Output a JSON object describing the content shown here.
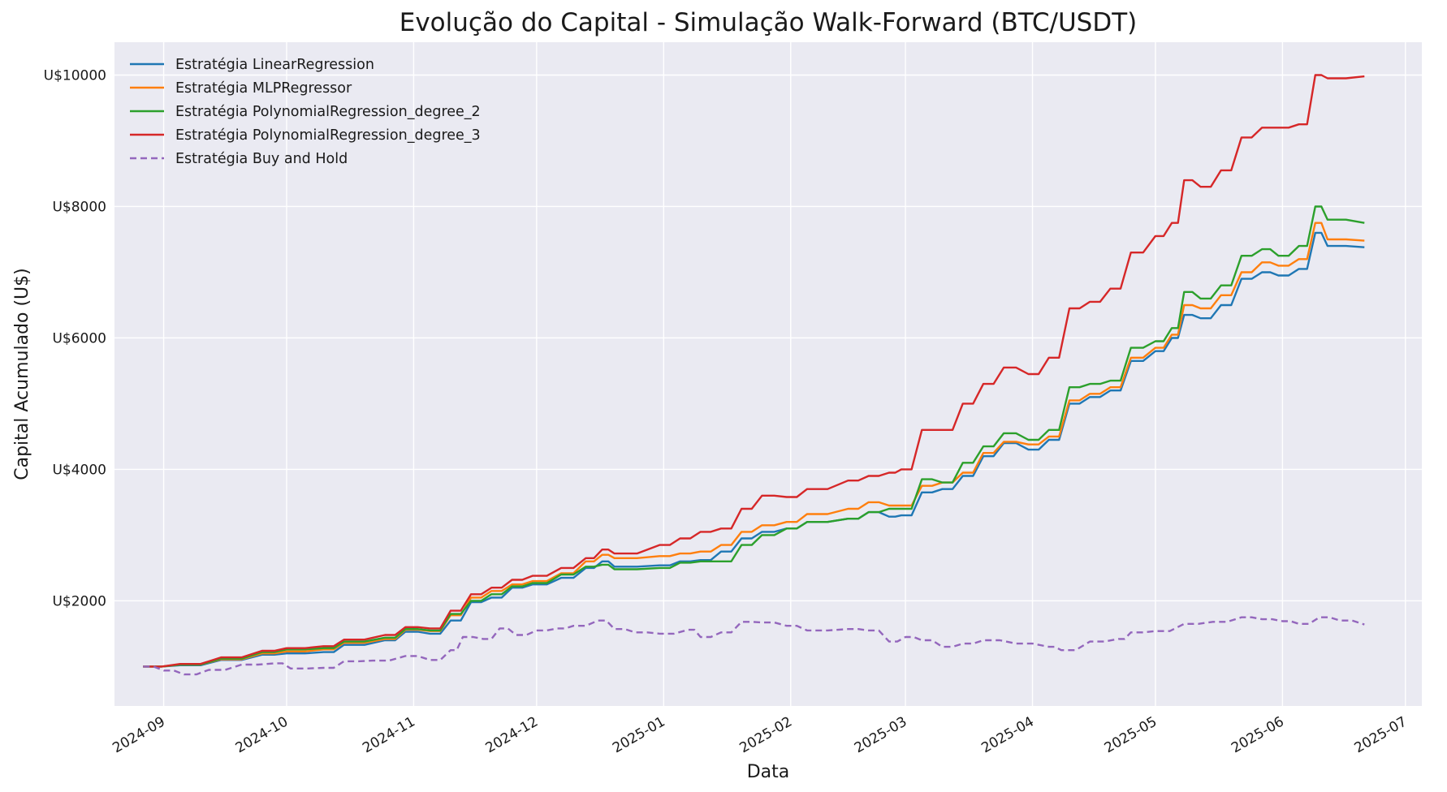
{
  "chart_data": {
    "type": "line",
    "title": "Evolução do Capital - Simulação Walk-Forward (BTC/USDT)",
    "xlabel": "Data",
    "ylabel": "Capital Acumulado (U$)",
    "x_range": [
      "2024-08-20",
      "2025-07-05"
    ],
    "ylim": [
      400,
      10500
    ],
    "yticks": [
      2000,
      4000,
      6000,
      8000,
      10000
    ],
    "ytick_prefix": "U$",
    "xticks": [
      "2024-09",
      "2024-10",
      "2024-11",
      "2024-12",
      "2025-01",
      "2025-02",
      "2025-03",
      "2025-04",
      "2025-05",
      "2025-06",
      "2025-07"
    ],
    "grid": true,
    "legend_position": "top-left",
    "series": [
      {
        "name": "Estratégia LinearRegression",
        "color": "#1f77b4",
        "style": "solid",
        "points": [
          [
            "2024-08-27",
            1000
          ],
          [
            "2024-09-05",
            1020
          ],
          [
            "2024-09-15",
            1100
          ],
          [
            "2024-09-25",
            1180
          ],
          [
            "2024-10-01",
            1200
          ],
          [
            "2024-10-10",
            1220
          ],
          [
            "2024-10-15",
            1330
          ],
          [
            "2024-10-25",
            1400
          ],
          [
            "2024-10-30",
            1530
          ],
          [
            "2024-11-05",
            1500
          ],
          [
            "2024-11-10",
            1700
          ],
          [
            "2024-11-15",
            1980
          ],
          [
            "2024-11-20",
            2050
          ],
          [
            "2024-11-25",
            2200
          ],
          [
            "2024-11-30",
            2250
          ],
          [
            "2024-12-07",
            2350
          ],
          [
            "2024-12-13",
            2500
          ],
          [
            "2024-12-17",
            2600
          ],
          [
            "2024-12-20",
            2520
          ],
          [
            "2024-12-31",
            2540
          ],
          [
            "2025-01-05",
            2600
          ],
          [
            "2025-01-10",
            2620
          ],
          [
            "2025-01-15",
            2750
          ],
          [
            "2025-01-20",
            2950
          ],
          [
            "2025-01-25",
            3050
          ],
          [
            "2025-01-31",
            3100
          ],
          [
            "2025-02-05",
            3200
          ],
          [
            "2025-02-15",
            3250
          ],
          [
            "2025-02-20",
            3350
          ],
          [
            "2025-02-25",
            3280
          ],
          [
            "2025-02-28",
            3300
          ],
          [
            "2025-03-05",
            3650
          ],
          [
            "2025-03-10",
            3700
          ],
          [
            "2025-03-15",
            3900
          ],
          [
            "2025-03-20",
            4200
          ],
          [
            "2025-03-25",
            4400
          ],
          [
            "2025-03-31",
            4300
          ],
          [
            "2025-04-05",
            4450
          ],
          [
            "2025-04-10",
            5000
          ],
          [
            "2025-04-15",
            5100
          ],
          [
            "2025-04-20",
            5200
          ],
          [
            "2025-04-25",
            5650
          ],
          [
            "2025-05-01",
            5800
          ],
          [
            "2025-05-05",
            6000
          ],
          [
            "2025-05-08",
            6350
          ],
          [
            "2025-05-12",
            6300
          ],
          [
            "2025-05-17",
            6500
          ],
          [
            "2025-05-22",
            6900
          ],
          [
            "2025-05-27",
            7000
          ],
          [
            "2025-05-31",
            6950
          ],
          [
            "2025-06-05",
            7050
          ],
          [
            "2025-06-09",
            7600
          ],
          [
            "2025-06-12",
            7400
          ],
          [
            "2025-06-21",
            7380
          ]
        ]
      },
      {
        "name": "Estratégia MLPRegressor",
        "color": "#ff7f0e",
        "style": "solid",
        "points": [
          [
            "2024-08-27",
            1000
          ],
          [
            "2024-09-05",
            1030
          ],
          [
            "2024-09-15",
            1110
          ],
          [
            "2024-09-25",
            1200
          ],
          [
            "2024-10-01",
            1230
          ],
          [
            "2024-10-10",
            1260
          ],
          [
            "2024-10-15",
            1360
          ],
          [
            "2024-10-25",
            1420
          ],
          [
            "2024-10-30",
            1560
          ],
          [
            "2024-11-05",
            1540
          ],
          [
            "2024-11-10",
            1780
          ],
          [
            "2024-11-15",
            2050
          ],
          [
            "2024-11-20",
            2150
          ],
          [
            "2024-11-25",
            2250
          ],
          [
            "2024-11-30",
            2300
          ],
          [
            "2024-12-07",
            2420
          ],
          [
            "2024-12-13",
            2600
          ],
          [
            "2024-12-17",
            2700
          ],
          [
            "2024-12-20",
            2650
          ],
          [
            "2024-12-31",
            2680
          ],
          [
            "2025-01-05",
            2720
          ],
          [
            "2025-01-10",
            2750
          ],
          [
            "2025-01-15",
            2850
          ],
          [
            "2025-01-20",
            3050
          ],
          [
            "2025-01-25",
            3150
          ],
          [
            "2025-01-31",
            3200
          ],
          [
            "2025-02-05",
            3320
          ],
          [
            "2025-02-15",
            3400
          ],
          [
            "2025-02-20",
            3500
          ],
          [
            "2025-02-25",
            3450
          ],
          [
            "2025-02-28",
            3450
          ],
          [
            "2025-03-05",
            3750
          ],
          [
            "2025-03-10",
            3800
          ],
          [
            "2025-03-15",
            3950
          ],
          [
            "2025-03-20",
            4250
          ],
          [
            "2025-03-25",
            4420
          ],
          [
            "2025-03-31",
            4380
          ],
          [
            "2025-04-05",
            4500
          ],
          [
            "2025-04-10",
            5050
          ],
          [
            "2025-04-15",
            5150
          ],
          [
            "2025-04-20",
            5250
          ],
          [
            "2025-04-25",
            5700
          ],
          [
            "2025-05-01",
            5850
          ],
          [
            "2025-05-05",
            6050
          ],
          [
            "2025-05-08",
            6500
          ],
          [
            "2025-05-12",
            6450
          ],
          [
            "2025-05-17",
            6650
          ],
          [
            "2025-05-22",
            7000
          ],
          [
            "2025-05-27",
            7150
          ],
          [
            "2025-05-31",
            7100
          ],
          [
            "2025-06-05",
            7200
          ],
          [
            "2025-06-09",
            7750
          ],
          [
            "2025-06-12",
            7500
          ],
          [
            "2025-06-21",
            7480
          ]
        ]
      },
      {
        "name": "Estratégia PolynomialRegression_degree_2",
        "color": "#2ca02c",
        "style": "solid",
        "points": [
          [
            "2024-08-27",
            1000
          ],
          [
            "2024-09-05",
            1030
          ],
          [
            "2024-09-15",
            1120
          ],
          [
            "2024-09-25",
            1220
          ],
          [
            "2024-10-01",
            1260
          ],
          [
            "2024-10-10",
            1280
          ],
          [
            "2024-10-15",
            1380
          ],
          [
            "2024-10-25",
            1440
          ],
          [
            "2024-10-30",
            1570
          ],
          [
            "2024-11-05",
            1550
          ],
          [
            "2024-11-10",
            1800
          ],
          [
            "2024-11-15",
            2000
          ],
          [
            "2024-11-20",
            2100
          ],
          [
            "2024-11-25",
            2220
          ],
          [
            "2024-11-30",
            2270
          ],
          [
            "2024-12-07",
            2400
          ],
          [
            "2024-12-13",
            2520
          ],
          [
            "2024-12-17",
            2550
          ],
          [
            "2024-12-20",
            2480
          ],
          [
            "2024-12-31",
            2500
          ],
          [
            "2025-01-05",
            2580
          ],
          [
            "2025-01-10",
            2600
          ],
          [
            "2025-01-15",
            2600
          ],
          [
            "2025-01-20",
            2850
          ],
          [
            "2025-01-25",
            3000
          ],
          [
            "2025-01-31",
            3100
          ],
          [
            "2025-02-05",
            3200
          ],
          [
            "2025-02-15",
            3250
          ],
          [
            "2025-02-20",
            3350
          ],
          [
            "2025-02-25",
            3400
          ],
          [
            "2025-02-28",
            3400
          ],
          [
            "2025-03-05",
            3850
          ],
          [
            "2025-03-10",
            3800
          ],
          [
            "2025-03-15",
            4100
          ],
          [
            "2025-03-20",
            4350
          ],
          [
            "2025-03-25",
            4550
          ],
          [
            "2025-03-31",
            4450
          ],
          [
            "2025-04-05",
            4600
          ],
          [
            "2025-04-10",
            5250
          ],
          [
            "2025-04-15",
            5300
          ],
          [
            "2025-04-20",
            5350
          ],
          [
            "2025-04-25",
            5850
          ],
          [
            "2025-05-01",
            5950
          ],
          [
            "2025-05-05",
            6150
          ],
          [
            "2025-05-08",
            6700
          ],
          [
            "2025-05-12",
            6600
          ],
          [
            "2025-05-17",
            6800
          ],
          [
            "2025-05-22",
            7250
          ],
          [
            "2025-05-27",
            7350
          ],
          [
            "2025-05-31",
            7250
          ],
          [
            "2025-06-05",
            7400
          ],
          [
            "2025-06-09",
            8000
          ],
          [
            "2025-06-12",
            7800
          ],
          [
            "2025-06-21",
            7750
          ]
        ]
      },
      {
        "name": "Estratégia PolynomialRegression_degree_3",
        "color": "#d62728",
        "style": "solid",
        "points": [
          [
            "2024-08-27",
            1000
          ],
          [
            "2024-09-05",
            1040
          ],
          [
            "2024-09-15",
            1140
          ],
          [
            "2024-09-25",
            1240
          ],
          [
            "2024-10-01",
            1280
          ],
          [
            "2024-10-10",
            1310
          ],
          [
            "2024-10-15",
            1410
          ],
          [
            "2024-10-25",
            1480
          ],
          [
            "2024-10-30",
            1600
          ],
          [
            "2024-11-05",
            1580
          ],
          [
            "2024-11-10",
            1850
          ],
          [
            "2024-11-15",
            2100
          ],
          [
            "2024-11-20",
            2200
          ],
          [
            "2024-11-25",
            2320
          ],
          [
            "2024-11-30",
            2380
          ],
          [
            "2024-12-07",
            2500
          ],
          [
            "2024-12-13",
            2650
          ],
          [
            "2024-12-17",
            2780
          ],
          [
            "2024-12-20",
            2720
          ],
          [
            "2024-12-31",
            2850
          ],
          [
            "2025-01-05",
            2950
          ],
          [
            "2025-01-10",
            3050
          ],
          [
            "2025-01-15",
            3100
          ],
          [
            "2025-01-20",
            3400
          ],
          [
            "2025-01-25",
            3600
          ],
          [
            "2025-01-31",
            3580
          ],
          [
            "2025-02-05",
            3700
          ],
          [
            "2025-02-15",
            3830
          ],
          [
            "2025-02-20",
            3900
          ],
          [
            "2025-02-25",
            3950
          ],
          [
            "2025-02-28",
            4000
          ],
          [
            "2025-03-05",
            4600
          ],
          [
            "2025-03-10",
            4600
          ],
          [
            "2025-03-15",
            5000
          ],
          [
            "2025-03-20",
            5300
          ],
          [
            "2025-03-25",
            5550
          ],
          [
            "2025-03-31",
            5450
          ],
          [
            "2025-04-05",
            5700
          ],
          [
            "2025-04-10",
            6450
          ],
          [
            "2025-04-15",
            6550
          ],
          [
            "2025-04-20",
            6750
          ],
          [
            "2025-04-25",
            7300
          ],
          [
            "2025-05-01",
            7550
          ],
          [
            "2025-05-05",
            7750
          ],
          [
            "2025-05-08",
            8400
          ],
          [
            "2025-05-12",
            8300
          ],
          [
            "2025-05-17",
            8550
          ],
          [
            "2025-05-22",
            9050
          ],
          [
            "2025-05-27",
            9200
          ],
          [
            "2025-05-31",
            9200
          ],
          [
            "2025-06-05",
            9250
          ],
          [
            "2025-06-09",
            10000
          ],
          [
            "2025-06-12",
            9950
          ],
          [
            "2025-06-21",
            9980
          ]
        ]
      },
      {
        "name": "Estratégia Buy and Hold",
        "color": "#9467bd",
        "style": "dashed",
        "points": [
          [
            "2024-08-27",
            1000
          ],
          [
            "2024-09-01",
            940
          ],
          [
            "2024-09-06",
            880
          ],
          [
            "2024-09-12",
            950
          ],
          [
            "2024-09-20",
            1030
          ],
          [
            "2024-09-28",
            1050
          ],
          [
            "2024-10-02",
            970
          ],
          [
            "2024-10-10",
            980
          ],
          [
            "2024-10-15",
            1080
          ],
          [
            "2024-10-22",
            1090
          ],
          [
            "2024-10-30",
            1160
          ],
          [
            "2024-11-05",
            1100
          ],
          [
            "2024-11-10",
            1250
          ],
          [
            "2024-11-13",
            1450
          ],
          [
            "2024-11-18",
            1420
          ],
          [
            "2024-11-22",
            1580
          ],
          [
            "2024-11-26",
            1480
          ],
          [
            "2024-12-01",
            1550
          ],
          [
            "2024-12-06",
            1580
          ],
          [
            "2024-12-10",
            1620
          ],
          [
            "2024-12-16",
            1700
          ],
          [
            "2024-12-20",
            1570
          ],
          [
            "2024-12-25",
            1520
          ],
          [
            "2024-12-31",
            1500
          ],
          [
            "2025-01-07",
            1560
          ],
          [
            "2025-01-10",
            1450
          ],
          [
            "2025-01-15",
            1520
          ],
          [
            "2025-01-20",
            1680
          ],
          [
            "2025-01-25",
            1670
          ],
          [
            "2025-01-31",
            1620
          ],
          [
            "2025-02-05",
            1550
          ],
          [
            "2025-02-15",
            1570
          ],
          [
            "2025-02-20",
            1550
          ],
          [
            "2025-02-25",
            1380
          ],
          [
            "2025-03-01",
            1450
          ],
          [
            "2025-03-05",
            1400
          ],
          [
            "2025-03-10",
            1300
          ],
          [
            "2025-03-15",
            1350
          ],
          [
            "2025-03-20",
            1400
          ],
          [
            "2025-03-28",
            1350
          ],
          [
            "2025-04-05",
            1300
          ],
          [
            "2025-04-08",
            1250
          ],
          [
            "2025-04-15",
            1380
          ],
          [
            "2025-04-22",
            1420
          ],
          [
            "2025-04-25",
            1520
          ],
          [
            "2025-05-01",
            1540
          ],
          [
            "2025-05-08",
            1650
          ],
          [
            "2025-05-15",
            1680
          ],
          [
            "2025-05-22",
            1750
          ],
          [
            "2025-05-27",
            1720
          ],
          [
            "2025-06-01",
            1690
          ],
          [
            "2025-06-05",
            1650
          ],
          [
            "2025-06-10",
            1750
          ],
          [
            "2025-06-15",
            1700
          ],
          [
            "2025-06-21",
            1640
          ]
        ]
      }
    ]
  }
}
